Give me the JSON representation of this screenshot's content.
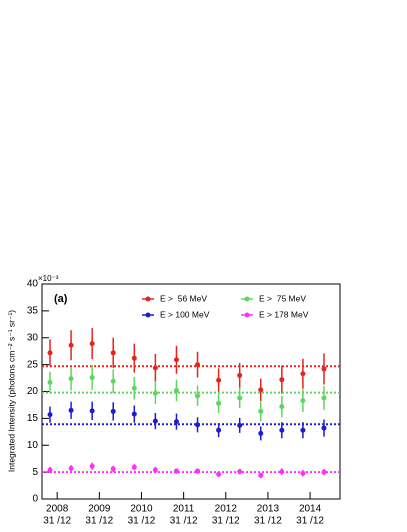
{
  "chart_data": {
    "type": "errorbar",
    "panel_label": "(a)",
    "ylabel": "Integrated Intensity (photons cm⁻² s⁻¹ sr⁻¹)",
    "y_multiplier": "×10⁻³",
    "x": [
      2007.83,
      2008.33,
      2008.83,
      2009.33,
      2009.83,
      2010.33,
      2010.83,
      2011.33,
      2011.83,
      2012.33,
      2012.83,
      2013.33,
      2013.83,
      2014.33
    ],
    "xlim": [
      2007.64,
      2014.71
    ],
    "xticks": [
      2008,
      2009,
      2010,
      2011,
      2012,
      2013,
      2014
    ],
    "xtick_sublabels": [
      "31 /12",
      "31 /12",
      "31 /12",
      "31 /12",
      "31 /12",
      "31 /12",
      "31 /12"
    ],
    "ylim": [
      0,
      40
    ],
    "yticks": [
      0,
      5,
      10,
      15,
      20,
      25,
      30,
      35,
      40
    ],
    "series": [
      {
        "name": "E >  56 MeV",
        "color": "#e8231c",
        "level": 24.7,
        "values": [
          27.2,
          28.6,
          28.9,
          27.2,
          26.2,
          24.4,
          25.9,
          25.0,
          22.1,
          23.0,
          20.3,
          22.2,
          23.3,
          24.2
        ],
        "errors": [
          2.5,
          2.8,
          2.9,
          2.8,
          2.7,
          2.6,
          2.6,
          2.4,
          2.2,
          2.3,
          2.1,
          2.6,
          2.8,
          2.9
        ]
      },
      {
        "name": "E >  75 MeV",
        "color": "#5ed65e",
        "level": 19.8,
        "values": [
          21.7,
          22.4,
          22.6,
          21.9,
          20.6,
          19.7,
          20.2,
          19.2,
          17.8,
          18.8,
          16.3,
          17.2,
          18.3,
          18.8
        ],
        "errors": [
          2.0,
          2.2,
          2.3,
          2.2,
          2.1,
          2.0,
          2.0,
          1.9,
          1.8,
          1.9,
          1.8,
          2.0,
          2.1,
          2.2
        ]
      },
      {
        "name": "E > 100 MeV",
        "color": "#1c1cd0",
        "level": 13.9,
        "values": [
          15.7,
          16.5,
          16.4,
          16.3,
          15.8,
          14.5,
          14.4,
          13.8,
          12.8,
          13.7,
          12.2,
          12.8,
          12.8,
          13.2
        ],
        "errors": [
          1.5,
          1.6,
          1.7,
          1.7,
          1.6,
          1.5,
          1.5,
          1.4,
          1.3,
          1.4,
          1.3,
          1.5,
          1.5,
          1.6
        ]
      },
      {
        "name": "E > 178 MeV",
        "color": "#ff30ff",
        "level": 5.0,
        "values": [
          5.4,
          5.7,
          6.1,
          5.6,
          5.9,
          5.4,
          5.2,
          5.2,
          4.6,
          5.1,
          4.4,
          5.1,
          4.8,
          5.0
        ],
        "errors": [
          0.6,
          0.6,
          0.7,
          0.6,
          0.6,
          0.6,
          0.5,
          0.5,
          0.5,
          0.5,
          0.5,
          0.6,
          0.6,
          0.6
        ]
      }
    ]
  }
}
